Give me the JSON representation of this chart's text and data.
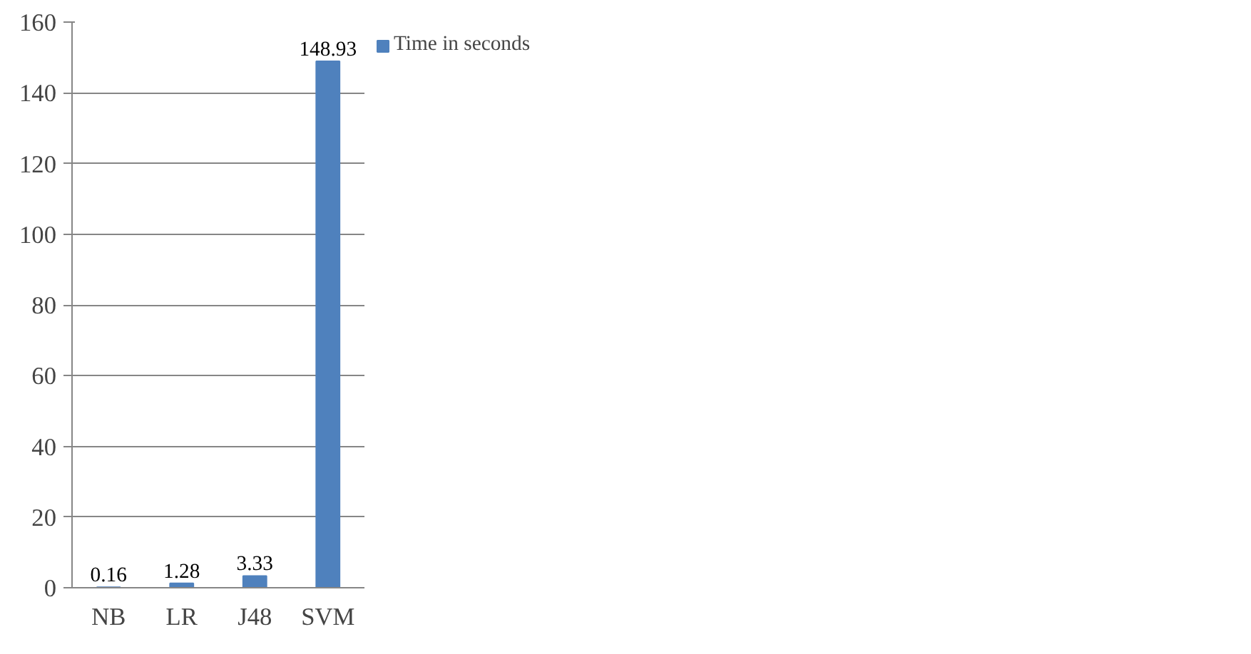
{
  "chart_data": {
    "type": "bar",
    "categories": [
      "NB",
      "LR",
      "J48",
      "SVM"
    ],
    "series": [
      {
        "name": "Time in seconds",
        "color": "#4f81bd",
        "values": [
          0.16,
          1.28,
          3.33,
          148.93
        ]
      }
    ],
    "ylim": [
      0,
      160
    ],
    "yticks": [
      0,
      20,
      40,
      60,
      80,
      100,
      120,
      140,
      160
    ],
    "grid": "y",
    "legend": "right",
    "data_labels": true
  }
}
